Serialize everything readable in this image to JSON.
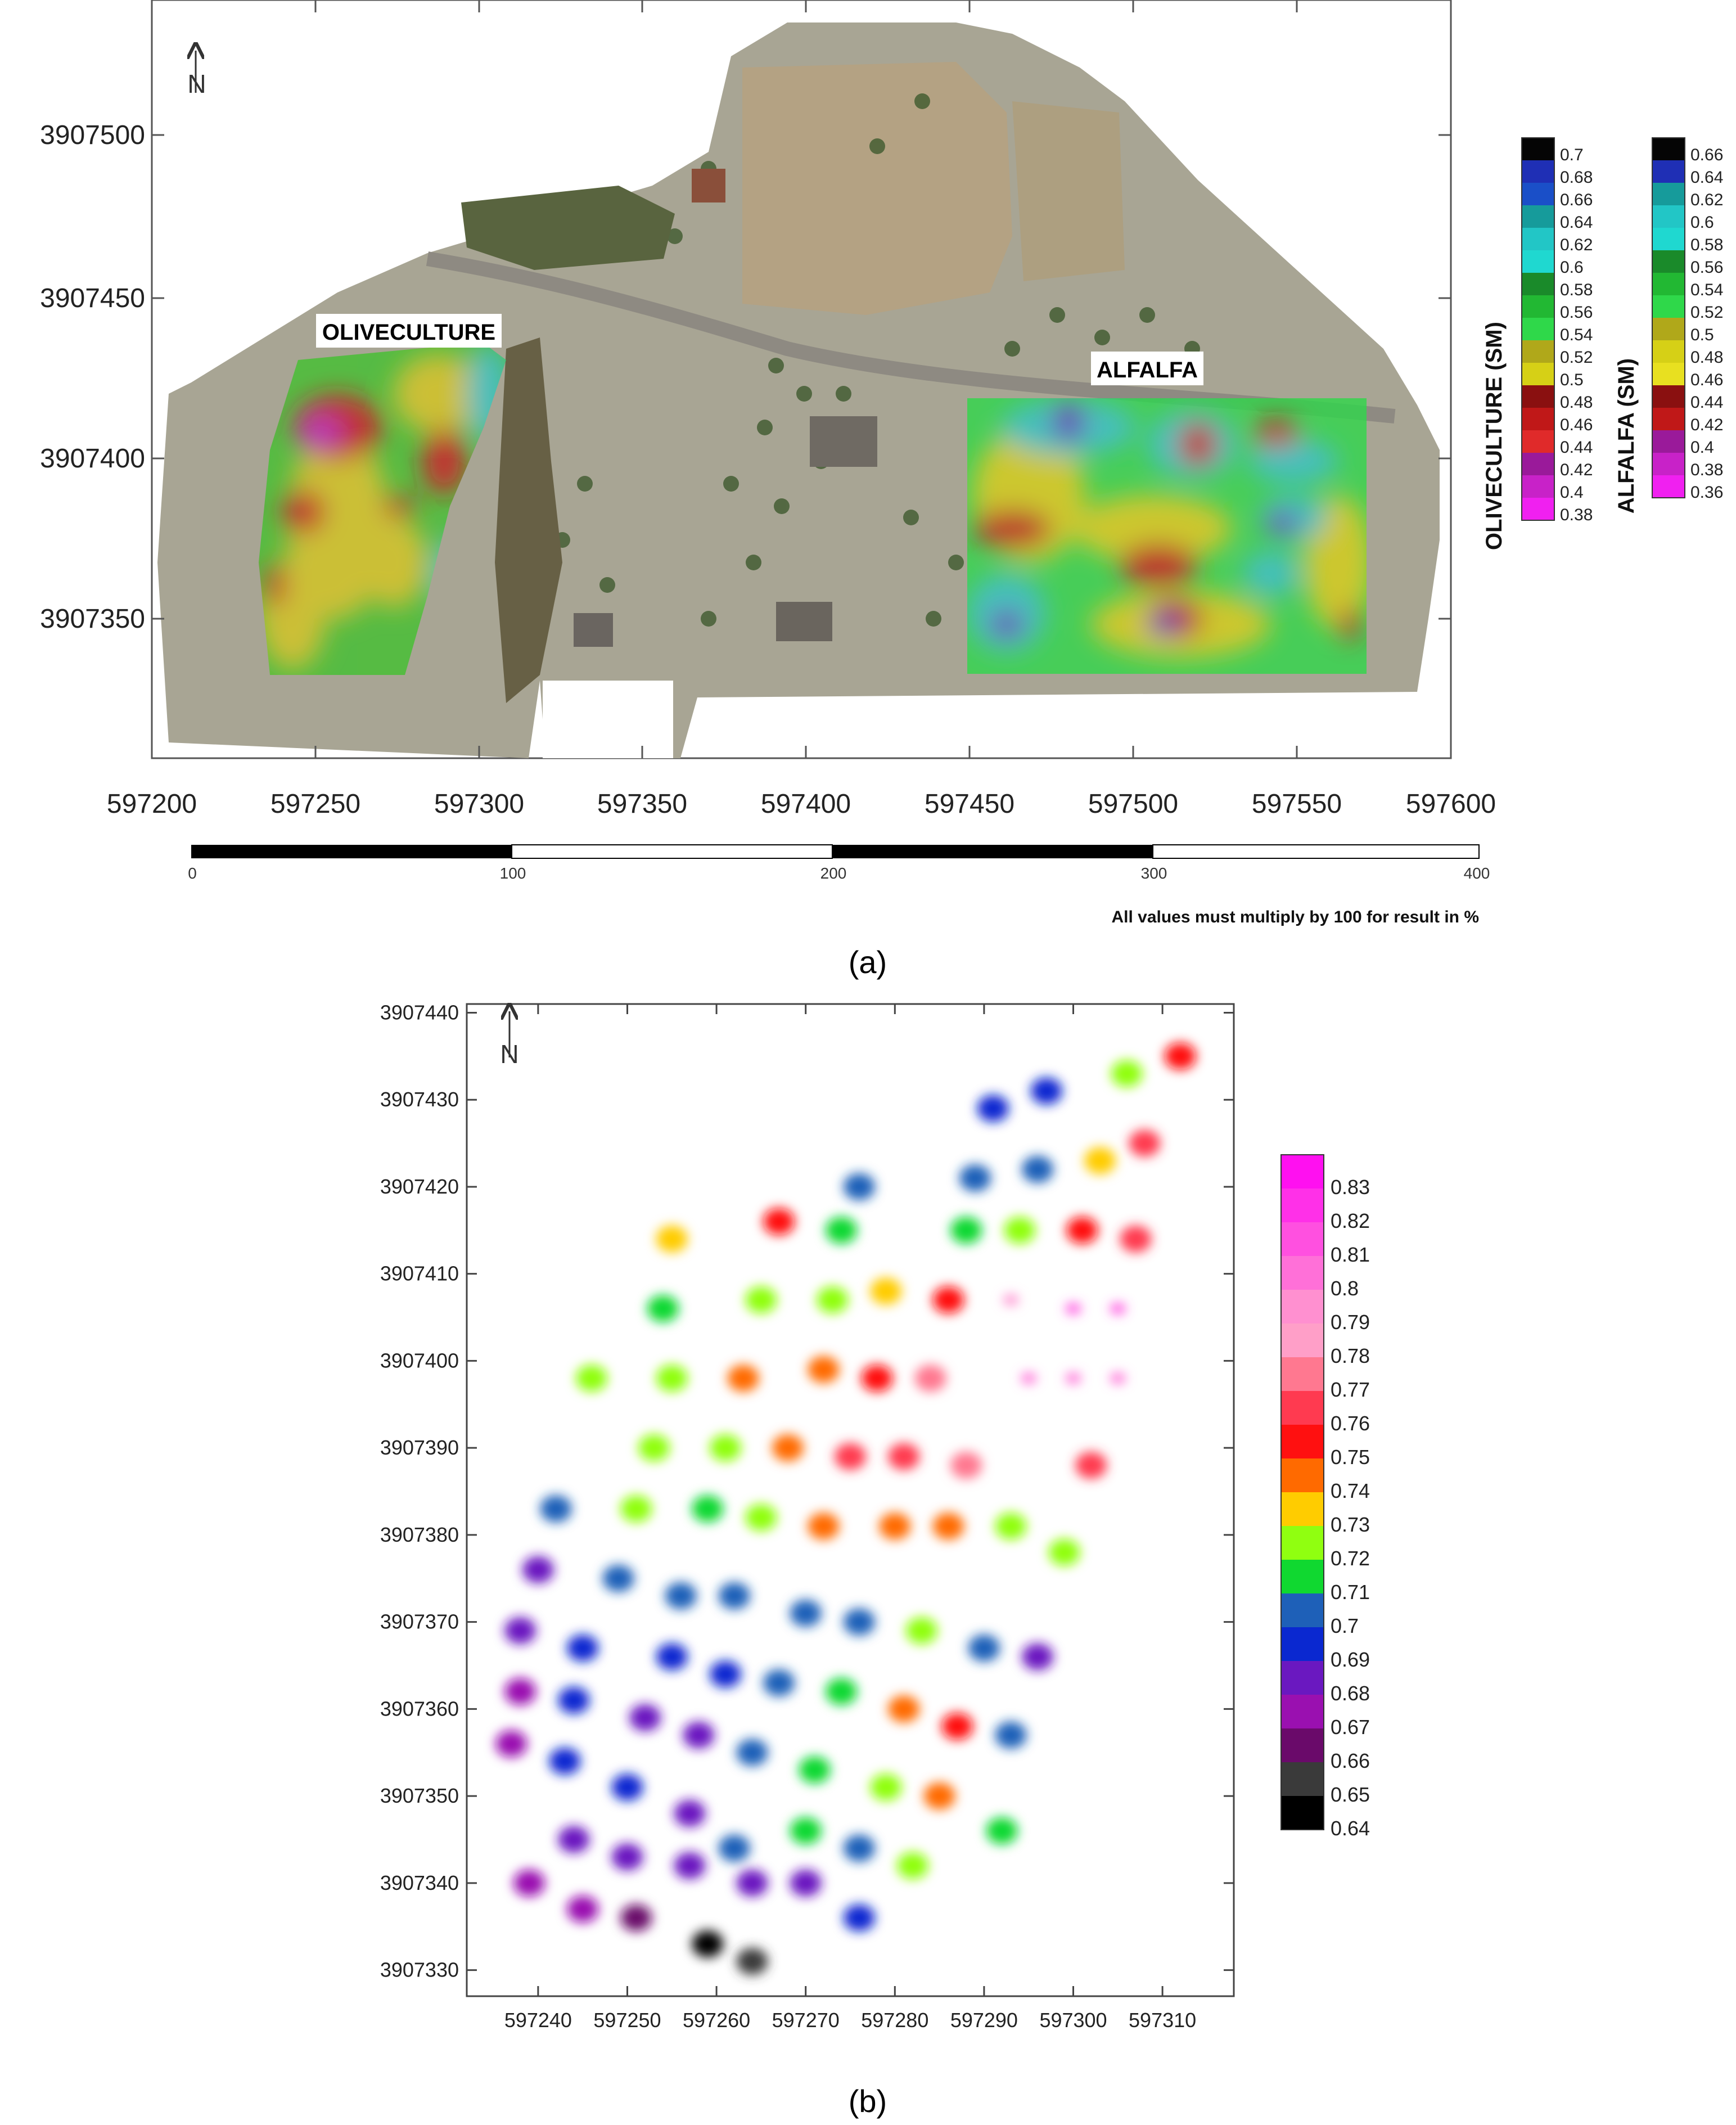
{
  "panel_a": {
    "caption": "(a)",
    "x_ticks": [
      "597200",
      "597250",
      "597300",
      "597350",
      "597400",
      "597450",
      "597500",
      "597550",
      "597600"
    ],
    "y_ticks": [
      "3907500",
      "3907450",
      "3907400",
      "3907350"
    ],
    "north_label": "N",
    "field_labels": {
      "olive": "OLIVECULTURE",
      "alfalfa": "ALFALFA"
    },
    "legend_olive": {
      "title": "OLIVECULTURE (SM)",
      "ticks": [
        "0.7",
        "0.68",
        "0.66",
        "0.64",
        "0.62",
        "0.6",
        "0.58",
        "0.56",
        "0.54",
        "0.52",
        "0.5",
        "0.48",
        "0.46",
        "0.44",
        "0.42",
        "0.4",
        "0.38"
      ],
      "colors": [
        "#050505",
        "#1f2fb5",
        "#1a4fc8",
        "#169b9b",
        "#22c6c6",
        "#1fd8d0",
        "#1a8a2a",
        "#22b833",
        "#2fd84a",
        "#b0a81a",
        "#d6d016",
        "#8a1010",
        "#c01818",
        "#e02a2a",
        "#9a1a9a",
        "#c822c8",
        "#f020f0"
      ]
    },
    "legend_alfalfa": {
      "title": "ALFALFA (SM)",
      "ticks": [
        "0.66",
        "0.64",
        "0.62",
        "0.6",
        "0.58",
        "0.56",
        "0.54",
        "0.52",
        "0.5",
        "0.48",
        "0.46",
        "0.44",
        "0.42",
        "0.4",
        "0.38",
        "0.36"
      ],
      "colors": [
        "#050505",
        "#1f2fb5",
        "#169b9b",
        "#22c6c6",
        "#1fd8d0",
        "#1a8a2a",
        "#22b833",
        "#2fd84a",
        "#b0a81a",
        "#d6d016",
        "#e8e020",
        "#8a1010",
        "#c01818",
        "#9a1a9a",
        "#c822c8",
        "#f020f0"
      ]
    },
    "scale_ticks": [
      "0",
      "100",
      "200",
      "300",
      "400"
    ],
    "note": "All values must multiply by 100 for result in %"
  },
  "panel_b": {
    "caption": "(b)",
    "north_label": "N",
    "x_ticks": [
      "597240",
      "597250",
      "597260",
      "597270",
      "597280",
      "597290",
      "597300",
      "597310"
    ],
    "y_ticks": [
      "3907440",
      "3907430",
      "3907420",
      "3907410",
      "3907400",
      "3907390",
      "3907380",
      "3907370",
      "3907360",
      "3907350",
      "3907340",
      "3907330"
    ],
    "legend": {
      "ticks": [
        "0.83",
        "0.82",
        "0.81",
        "0.8",
        "0.79",
        "0.78",
        "0.77",
        "0.76",
        "0.75",
        "0.74",
        "0.73",
        "0.72",
        "0.71",
        "0.7",
        "0.69",
        "0.68",
        "0.67",
        "0.66",
        "0.65",
        "0.64"
      ],
      "colors": [
        "#ff10f0",
        "#ff30e8",
        "#ff50e0",
        "#ff70d8",
        "#ff90d0",
        "#ff9fc8",
        "#ff7890",
        "#ff3a50",
        "#ff1010",
        "#ff6a00",
        "#ffcc00",
        "#90ff10",
        "#10d830",
        "#1e60b8",
        "#0a28d0",
        "#6a18c0",
        "#9a10b0",
        "#6a0a6a",
        "#3a3a3a",
        "#000000"
      ]
    },
    "chart_data": {
      "type": "scatter",
      "title": "",
      "xlabel": "",
      "ylabel": "",
      "xlim": [
        597232,
        597318
      ],
      "ylim": [
        3907327,
        3907441
      ],
      "points": [
        {
          "x": 597237,
          "y": 3907356,
          "v": 0.67
        },
        {
          "x": 597239,
          "y": 3907340,
          "v": 0.67
        },
        {
          "x": 597238,
          "y": 3907362,
          "v": 0.67
        },
        {
          "x": 597238,
          "y": 3907369,
          "v": 0.68
        },
        {
          "x": 597240,
          "y": 3907376,
          "v": 0.68
        },
        {
          "x": 597242,
          "y": 3907383,
          "v": 0.7
        },
        {
          "x": 597243,
          "y": 3907354,
          "v": 0.69
        },
        {
          "x": 597244,
          "y": 3907345,
          "v": 0.68
        },
        {
          "x": 597245,
          "y": 3907337,
          "v": 0.67
        },
        {
          "x": 597244,
          "y": 3907361,
          "v": 0.69
        },
        {
          "x": 597245,
          "y": 3907367,
          "v": 0.69
        },
        {
          "x": 597246,
          "y": 3907398,
          "v": 0.72
        },
        {
          "x": 597249,
          "y": 3907375,
          "v": 0.7
        },
        {
          "x": 597251,
          "y": 3907383,
          "v": 0.72
        },
        {
          "x": 597250,
          "y": 3907343,
          "v": 0.68
        },
        {
          "x": 597251,
          "y": 3907336,
          "v": 0.66
        },
        {
          "x": 597250,
          "y": 3907351,
          "v": 0.69
        },
        {
          "x": 597252,
          "y": 3907359,
          "v": 0.68
        },
        {
          "x": 597253,
          "y": 3907390,
          "v": 0.72
        },
        {
          "x": 597255,
          "y": 3907398,
          "v": 0.72
        },
        {
          "x": 597255,
          "y": 3907366,
          "v": 0.69
        },
        {
          "x": 597254,
          "y": 3907406,
          "v": 0.71
        },
        {
          "x": 597255,
          "y": 3907414,
          "v": 0.73
        },
        {
          "x": 597256,
          "y": 3907373,
          "v": 0.7
        },
        {
          "x": 597257,
          "y": 3907348,
          "v": 0.68
        },
        {
          "x": 597257,
          "y": 3907342,
          "v": 0.68
        },
        {
          "x": 597258,
          "y": 3907357,
          "v": 0.68
        },
        {
          "x": 597259,
          "y": 3907383,
          "v": 0.71
        },
        {
          "x": 597259,
          "y": 3907333,
          "v": 0.64
        },
        {
          "x": 597261,
          "y": 3907364,
          "v": 0.69
        },
        {
          "x": 597261,
          "y": 3907390,
          "v": 0.72
        },
        {
          "x": 597262,
          "y": 3907344,
          "v": 0.7
        },
        {
          "x": 597262,
          "y": 3907373,
          "v": 0.7
        },
        {
          "x": 597263,
          "y": 3907398,
          "v": 0.74
        },
        {
          "x": 597264,
          "y": 3907340,
          "v": 0.68
        },
        {
          "x": 597264,
          "y": 3907331,
          "v": 0.65
        },
        {
          "x": 597264,
          "y": 3907355,
          "v": 0.7
        },
        {
          "x": 597265,
          "y": 3907382,
          "v": 0.72
        },
        {
          "x": 597265,
          "y": 3907407,
          "v": 0.72
        },
        {
          "x": 597267,
          "y": 3907416,
          "v": 0.75
        },
        {
          "x": 597267,
          "y": 3907363,
          "v": 0.7
        },
        {
          "x": 597268,
          "y": 3907390,
          "v": 0.74
        },
        {
          "x": 597270,
          "y": 3907346,
          "v": 0.71
        },
        {
          "x": 597270,
          "y": 3907371,
          "v": 0.7
        },
        {
          "x": 597270,
          "y": 3907340,
          "v": 0.68
        },
        {
          "x": 597271,
          "y": 3907353,
          "v": 0.71
        },
        {
          "x": 597272,
          "y": 3907381,
          "v": 0.74
        },
        {
          "x": 597272,
          "y": 3907399,
          "v": 0.74
        },
        {
          "x": 597273,
          "y": 3907407,
          "v": 0.72
        },
        {
          "x": 597274,
          "y": 3907415,
          "v": 0.71
        },
        {
          "x": 597274,
          "y": 3907362,
          "v": 0.71
        },
        {
          "x": 597275,
          "y": 3907389,
          "v": 0.76
        },
        {
          "x": 597276,
          "y": 3907420,
          "v": 0.7
        },
        {
          "x": 597276,
          "y": 3907344,
          "v": 0.7
        },
        {
          "x": 597276,
          "y": 3907370,
          "v": 0.7
        },
        {
          "x": 597276,
          "y": 3907336,
          "v": 0.69
        },
        {
          "x": 597278,
          "y": 3907398,
          "v": 0.75
        },
        {
          "x": 597279,
          "y": 3907351,
          "v": 0.72
        },
        {
          "x": 597279,
          "y": 3907408,
          "v": 0.73
        },
        {
          "x": 597280,
          "y": 3907381,
          "v": 0.74
        },
        {
          "x": 597281,
          "y": 3907360,
          "v": 0.74
        },
        {
          "x": 597281,
          "y": 3907389,
          "v": 0.76
        },
        {
          "x": 597282,
          "y": 3907342,
          "v": 0.72
        },
        {
          "x": 597283,
          "y": 3907369,
          "v": 0.72
        },
        {
          "x": 597284,
          "y": 3907398,
          "v": 0.77
        },
        {
          "x": 597285,
          "y": 3907350,
          "v": 0.74
        },
        {
          "x": 597286,
          "y": 3907381,
          "v": 0.74
        },
        {
          "x": 597286,
          "y": 3907407,
          "v": 0.75
        },
        {
          "x": 597287,
          "y": 3907358,
          "v": 0.75
        },
        {
          "x": 597288,
          "y": 3907415,
          "v": 0.71
        },
        {
          "x": 597289,
          "y": 3907421,
          "v": 0.7
        },
        {
          "x": 597288,
          "y": 3907388,
          "v": 0.77
        },
        {
          "x": 597290,
          "y": 3907367,
          "v": 0.7
        },
        {
          "x": 597291,
          "y": 3907429,
          "v": 0.69
        },
        {
          "x": 597292,
          "y": 3907346,
          "v": 0.71
        },
        {
          "x": 597293,
          "y": 3907381,
          "v": 0.72
        },
        {
          "x": 597293,
          "y": 3907357,
          "v": 0.7
        },
        {
          "x": 597293,
          "y": 3907407,
          "v": 0.79
        },
        {
          "x": 597294,
          "y": 3907415,
          "v": 0.72
        },
        {
          "x": 597295,
          "y": 3907398,
          "v": 0.8
        },
        {
          "x": 597296,
          "y": 3907366,
          "v": 0.68
        },
        {
          "x": 597296,
          "y": 3907422,
          "v": 0.7
        },
        {
          "x": 597297,
          "y": 3907431,
          "v": 0.69
        },
        {
          "x": 597299,
          "y": 3907378,
          "v": 0.72
        },
        {
          "x": 597300,
          "y": 3907406,
          "v": 0.81
        },
        {
          "x": 597300,
          "y": 3907398,
          "v": 0.8
        },
        {
          "x": 597301,
          "y": 3907415,
          "v": 0.75
        },
        {
          "x": 597302,
          "y": 3907388,
          "v": 0.76
        },
        {
          "x": 597303,
          "y": 3907423,
          "v": 0.73
        },
        {
          "x": 597305,
          "y": 3907406,
          "v": 0.81
        },
        {
          "x": 597305,
          "y": 3907398,
          "v": 0.8
        },
        {
          "x": 597306,
          "y": 3907433,
          "v": 0.72
        },
        {
          "x": 597307,
          "y": 3907414,
          "v": 0.76
        },
        {
          "x": 597308,
          "y": 3907425,
          "v": 0.76
        },
        {
          "x": 597312,
          "y": 3907435,
          "v": 0.75
        }
      ]
    }
  }
}
